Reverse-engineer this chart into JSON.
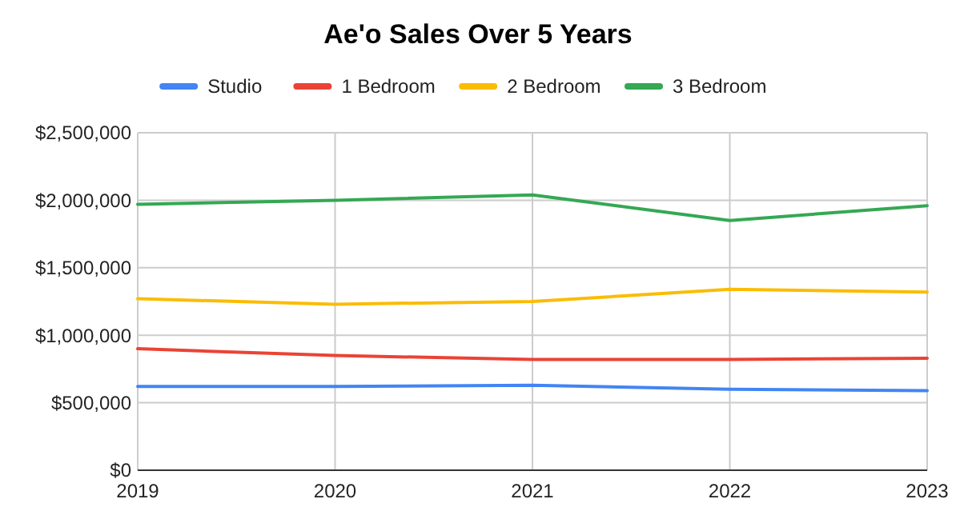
{
  "chart_data": {
    "type": "line",
    "title": "Ae'o Sales Over 5 Years",
    "x": [
      2019,
      2020,
      2021,
      2022,
      2023
    ],
    "xlim": [
      2019,
      2023
    ],
    "xticks": [
      2019,
      2020,
      2021,
      2022,
      2023
    ],
    "ylim": [
      0,
      2500000
    ],
    "yticks": [
      {
        "value": 0,
        "label": "$0"
      },
      {
        "value": 500000,
        "label": "$500,000"
      },
      {
        "value": 1000000,
        "label": "$1,000,000"
      },
      {
        "value": 1500000,
        "label": "$1,500,000"
      },
      {
        "value": 2000000,
        "label": "$2,000,000"
      },
      {
        "value": 2500000,
        "label": "$2,500,000"
      }
    ],
    "grid": true,
    "legend": "top",
    "series": [
      {
        "name": "Studio",
        "color": "#4285f4",
        "values": [
          620000,
          620000,
          630000,
          600000,
          590000
        ]
      },
      {
        "name": "1 Bedroom",
        "color": "#ea4335",
        "values": [
          900000,
          850000,
          820000,
          820000,
          830000
        ]
      },
      {
        "name": "2 Bedroom",
        "color": "#fbbc04",
        "values": [
          1270000,
          1230000,
          1250000,
          1340000,
          1320000
        ]
      },
      {
        "name": "3 Bedroom",
        "color": "#34a853",
        "values": [
          1970000,
          2000000,
          2040000,
          1850000,
          1960000
        ]
      }
    ]
  }
}
